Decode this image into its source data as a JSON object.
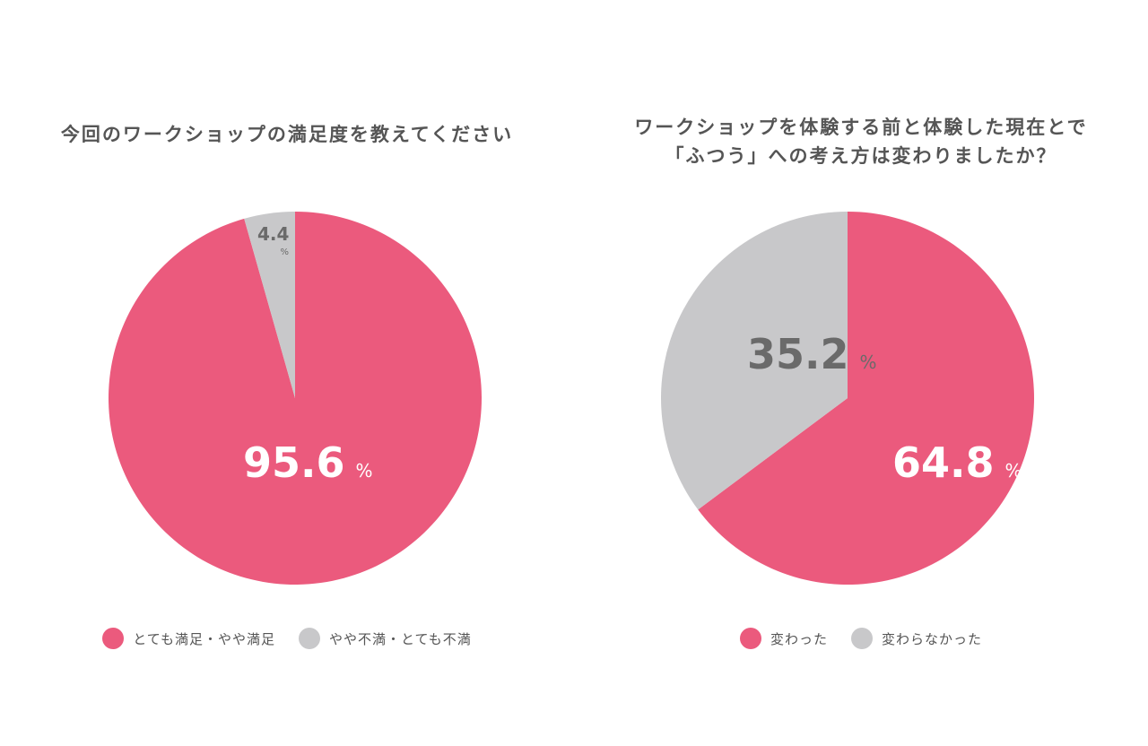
{
  "colors": {
    "pink": "#eb5a7d",
    "gray": "#c8c8ca",
    "white": "#ffffff",
    "dark_gray": "#6a6a6a"
  },
  "chart_data": [
    {
      "type": "pie",
      "title": "今回のワークショップの満足度を教えてください",
      "unit": "%",
      "slices": [
        {
          "label": "とても満足・やや満足",
          "value": 95.6,
          "value_text": "95.6",
          "color": "#eb5a7d"
        },
        {
          "label": "やや不満・とても不満",
          "value": 4.4,
          "value_text": "4.4",
          "color": "#c8c8ca"
        }
      ],
      "legend_position": "bottom"
    },
    {
      "type": "pie",
      "title_lines": [
        "ワークショップを体験する前と体験した現在とで",
        "「ふつう」への考え方は変わりましたか？"
      ],
      "unit": "%",
      "slices": [
        {
          "label": "変わった",
          "value": 64.8,
          "value_text": "64.8",
          "color": "#eb5a7d"
        },
        {
          "label": "変わらなかった",
          "value": 35.2,
          "value_text": "35.2",
          "color": "#c8c8ca"
        }
      ],
      "legend_position": "bottom"
    }
  ]
}
